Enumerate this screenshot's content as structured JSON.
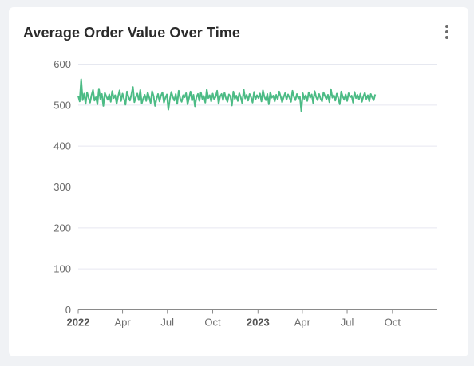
{
  "card": {
    "title": "Average Order Value Over Time",
    "menu_icon": "more-vertical-icon"
  },
  "colors": {
    "line": "#4cbb85",
    "grid": "#e6e8f0",
    "axis": "#8a8a8a",
    "text": "#6b6b6b",
    "title": "#2b2b2b"
  },
  "chart_data": {
    "type": "line",
    "title": "Average Order Value Over Time",
    "xlabel": "",
    "ylabel": "",
    "ylim": [
      0,
      600
    ],
    "yticks": [
      0,
      100,
      200,
      300,
      400,
      500,
      600
    ],
    "xlim": [
      "2022-01-01",
      "2023-12-31"
    ],
    "xticks": [
      {
        "date": "2022-01-01",
        "label": "2022",
        "bold": true
      },
      {
        "date": "2022-04-01",
        "label": "Apr",
        "bold": false
      },
      {
        "date": "2022-07-01",
        "label": "Jul",
        "bold": false
      },
      {
        "date": "2022-10-01",
        "label": "Oct",
        "bold": false
      },
      {
        "date": "2023-01-01",
        "label": "2023",
        "bold": true
      },
      {
        "date": "2023-04-01",
        "label": "Apr",
        "bold": false
      },
      {
        "date": "2023-07-01",
        "label": "Jul",
        "bold": false
      },
      {
        "date": "2023-10-01",
        "label": "Oct",
        "bold": false
      }
    ],
    "grid": true,
    "legend": "none",
    "series": [
      {
        "start_date": "2022-01-01",
        "interval_days": 3,
        "values": [
          522,
          509,
          563,
          512,
          528,
          503,
          531,
          518,
          506,
          524,
          537,
          511,
          519,
          502,
          540,
          515,
          527,
          498,
          530,
          521,
          513,
          526,
          508,
          534,
          517,
          524,
          503,
          521,
          536,
          510,
          528,
          515,
          501,
          533,
          520,
          511,
          526,
          544,
          507,
          519,
          528,
          512,
          537,
          504,
          516,
          525,
          510,
          531,
          519,
          505,
          534,
          522,
          498,
          515,
          527,
          509,
          523,
          531,
          506,
          518,
          526,
          489,
          514,
          532,
          520,
          511,
          527,
          503,
          535,
          516,
          508,
          524,
          519,
          529,
          502,
          517,
          533,
          511,
          525,
          497,
          519,
          527,
          510,
          531,
          515,
          522,
          506,
          538,
          517,
          524,
          509,
          528,
          514,
          520,
          535,
          503,
          521,
          527,
          512,
          530,
          516,
          508,
          526,
          521,
          499,
          533,
          515,
          523,
          510,
          529,
          519,
          504,
          538,
          516,
          525,
          511,
          527,
          519,
          506,
          532,
          514,
          524,
          517,
          528,
          509,
          536,
          520,
          512,
          527,
          502,
          531,
          518,
          523,
          509,
          525,
          514,
          533,
          521,
          507,
          519,
          529,
          513,
          526,
          518,
          508,
          535,
          520,
          512,
          527,
          516,
          521,
          485,
          529,
          515,
          524,
          510,
          531,
          518,
          526,
          505,
          534,
          520,
          512,
          527,
          516,
          509,
          531,
          522,
          514,
          525,
          507,
          539,
          518,
          524,
          511,
          528,
          517,
          502,
          533,
          521,
          513,
          526,
          510,
          529,
          519,
          523,
          506,
          532,
          517,
          525,
          514,
          528,
          508,
          521,
          530,
          515,
          524,
          509,
          527,
          518,
          512,
          526
        ]
      }
    ]
  }
}
